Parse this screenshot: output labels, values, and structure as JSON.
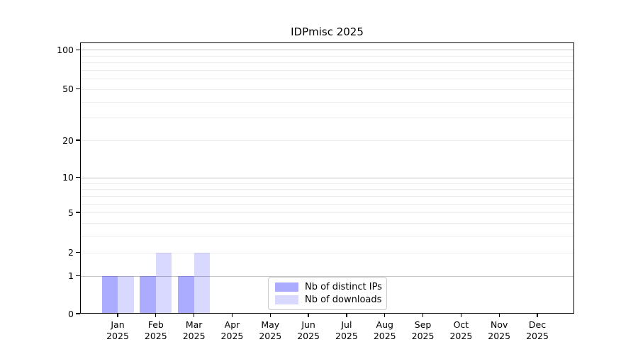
{
  "window": {
    "background": "#ffffff"
  },
  "chart_data": {
    "type": "bar",
    "title": "IDPmisc 2025",
    "xlabel": "",
    "ylabel": "",
    "categories": [
      "Jan",
      "Feb",
      "Mar",
      "Apr",
      "May",
      "Jun",
      "Jul",
      "Aug",
      "Sep",
      "Oct",
      "Nov",
      "Dec"
    ],
    "category_year_label": "2025",
    "series": [
      {
        "name": "Nb of distinct IPs",
        "color": "rgba(0,0,255,0.33)",
        "color_hex_on_white": "#aaaaff",
        "values": [
          1,
          1,
          1,
          0,
          0,
          0,
          0,
          0,
          0,
          0,
          0,
          0
        ]
      },
      {
        "name": "Nb of downloads",
        "color": "rgba(0,0,255,0.15)",
        "color_hex_on_white": "#d9d9ff",
        "values": [
          1,
          2,
          2,
          0,
          0,
          0,
          0,
          0,
          0,
          0,
          0,
          0
        ]
      }
    ],
    "y_axis": {
      "scale": "log1p",
      "tick_labels": [
        100,
        50,
        20,
        10,
        5,
        2,
        1,
        0
      ],
      "ylim": [
        0,
        114
      ],
      "grid": "on",
      "grid_major_color": "#c4c4c4",
      "grid_minor_color": "#ececec"
    },
    "legend": {
      "position": "lower center",
      "entries": [
        "Nb of distinct IPs",
        "Nb of downloads"
      ]
    }
  }
}
